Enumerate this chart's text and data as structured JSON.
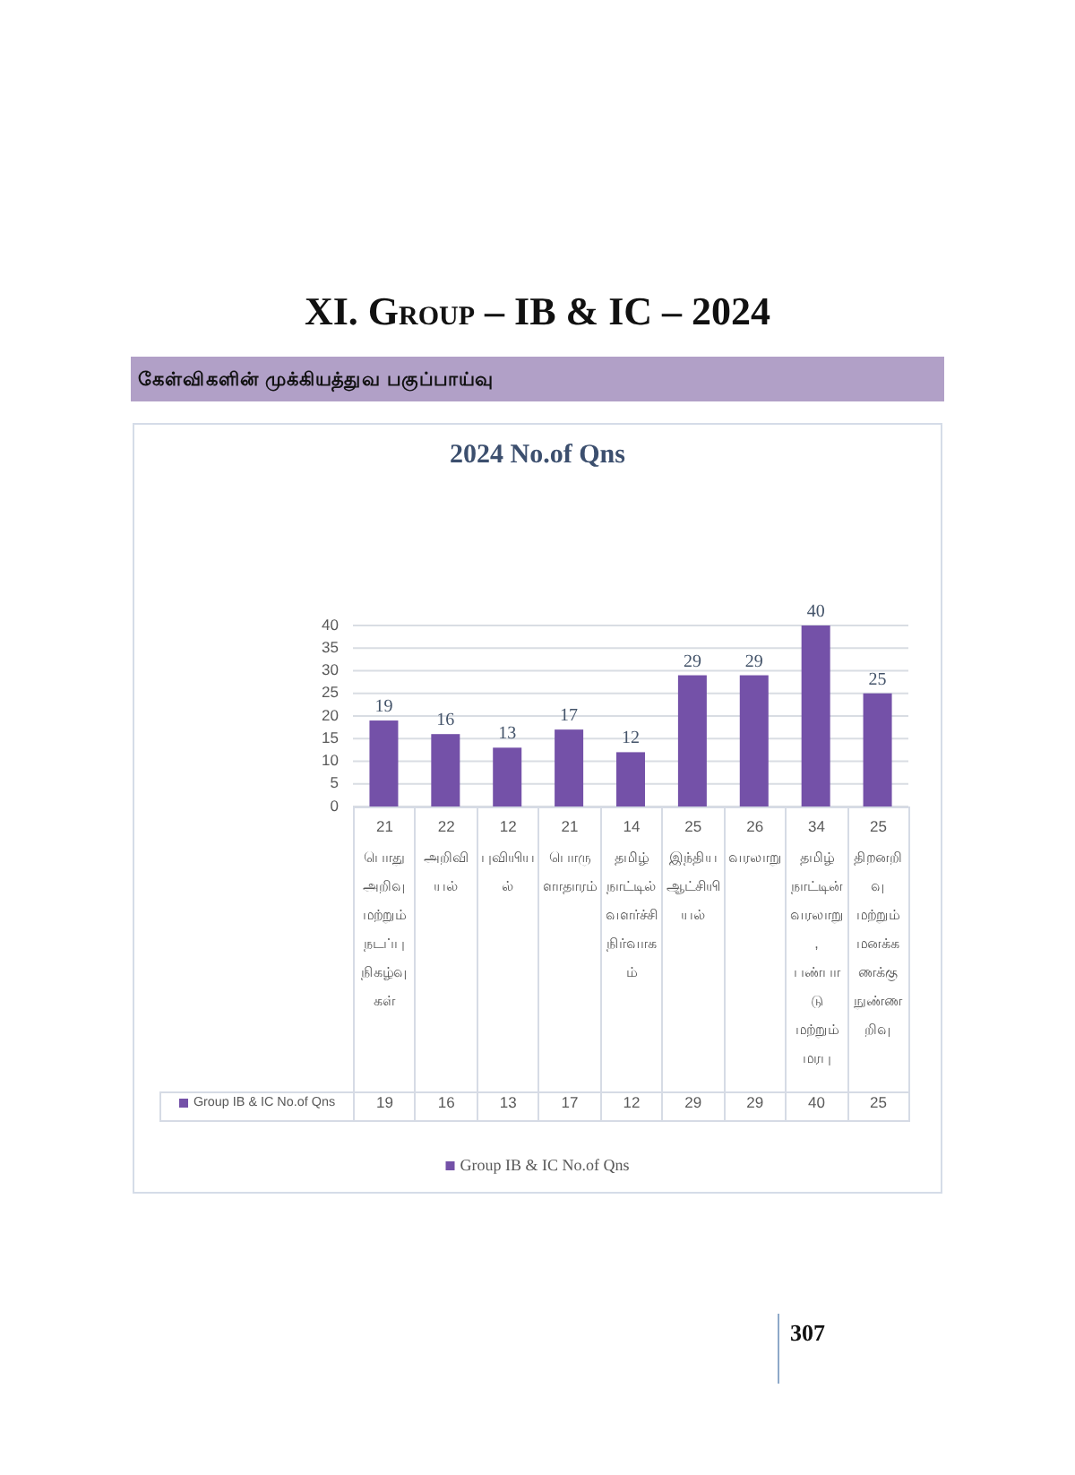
{
  "chart_data": {
    "type": "bar",
    "title": "2024 No.of Qns",
    "annotations": [
      "XI. Group – IB & IC – 2024",
      "கேள்விகளின் முக்கியத்துவ பகுப்பாய்வு",
      "307",
      {
        "text": "19",
        "x": "21\nபொது அறிவு மற்றும் நடப்பு நிகழ்வுகள்",
        "y": 19
      },
      {
        "text": "16",
        "x": "22\nஅறிவியல்",
        "y": 16
      },
      {
        "text": "13",
        "x": "12\nபுவியியல்",
        "y": 13
      },
      {
        "text": "17",
        "x": "21\nபொருளாதாரம்",
        "y": 17
      },
      {
        "text": "12",
        "x": "14\nதமிழ் நாட்டில் வளர்ச்சி நிர்வாகம்",
        "y": 12
      },
      {
        "text": "29",
        "x": "25\nஇந்திய ஆட்சியியல்",
        "y": 29
      },
      {
        "text": "29",
        "x": "26\nவரலாறு",
        "y": 29
      },
      {
        "text": "40",
        "x": "34\nதமிழ் நாட்டின் வரலாறு, பண்பாடு மற்றும் மரபு",
        "y": 40
      },
      {
        "text": "25",
        "x": "25\nதிறனறிவு மற்றும் மனக்கணக்கு நுண்ணறிவு",
        "y": 25
      }
    ],
    "categories": [
      "21\nபொது அறிவு மற்றும் நடப்பு நிகழ்வுகள்",
      "22\nஅறிவியல்",
      "12\nபுவியியல்",
      "21\nபொருளாதாரம்",
      "14\nதமிழ் நாட்டில் வளர்ச்சி நிர்வாகம்",
      "25\nஇந்திய ஆட்சியியல்",
      "26\nவரலாறு",
      "34\nதமிழ் நாட்டின் வரலாறு, பண்பாடு மற்றும் மரபு",
      "25\nதிறனறிவு மற்றும் மனக்கணக்கு நுண்ணறிவு"
    ],
    "series": [
      {
        "name": "Group IB & IC No.of Qns",
        "color": "#7451a8",
        "values": [
          19,
          16,
          13,
          17,
          12,
          29,
          29,
          40,
          25
        ]
      }
    ],
    "ylim": [
      0,
      40
    ],
    "yticks": [
      0,
      5,
      10,
      15,
      20,
      25,
      30,
      35,
      40
    ],
    "grid": "y",
    "legend": "bottom",
    "data_labels": true
  }
}
